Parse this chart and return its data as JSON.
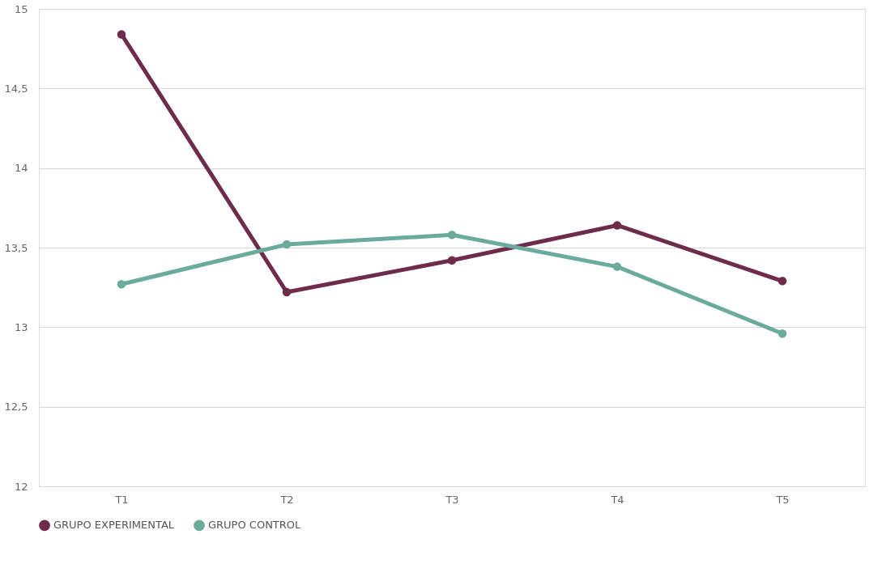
{
  "chart_data": {
    "type": "line",
    "categories": [
      "T1",
      "T2",
      "T3",
      "T4",
      "T5"
    ],
    "series": [
      {
        "name": "GRUPO EXPERIMENTAL",
        "color": "#6e2b4b",
        "values": [
          14.84,
          13.22,
          13.42,
          13.64,
          13.29
        ]
      },
      {
        "name": "GRUPO CONTROL",
        "color": "#6aab9c",
        "values": [
          13.27,
          13.52,
          13.58,
          13.38,
          12.96
        ]
      }
    ],
    "ylim": [
      12,
      15
    ],
    "yticks": [
      12,
      {
        "value": 12.5,
        "label": "12,5"
      },
      13,
      {
        "value": 13.5,
        "label": "13,5"
      },
      14,
      {
        "value": 14.5,
        "label": "14,5"
      },
      15
    ],
    "grid": "y",
    "legend": "bottom",
    "marker": "circle",
    "line_style": "solid"
  }
}
